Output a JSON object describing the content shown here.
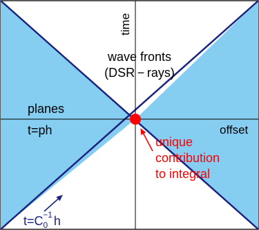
{
  "labels": {
    "time": "time",
    "offset": "offset",
    "wave_fronts_line1": "wave fronts",
    "wave_fronts_line2": "(DSR − rays)",
    "planes": "planes",
    "plane_equation": "t=ph",
    "unique_line1": "unique",
    "unique_line2": "contribution",
    "unique_line3": "to integral",
    "asymptote_prefix": "t=C",
    "asymptote_sub": "0",
    "asymptote_sup": "−1",
    "asymptote_suffix": "h"
  },
  "colors": {
    "fill": "#86cdf2",
    "line": "#1a237e",
    "axis": "#000000",
    "point": "#ff0000",
    "annotation": "#ff0000",
    "asymptote_text": "#1a237e"
  }
}
